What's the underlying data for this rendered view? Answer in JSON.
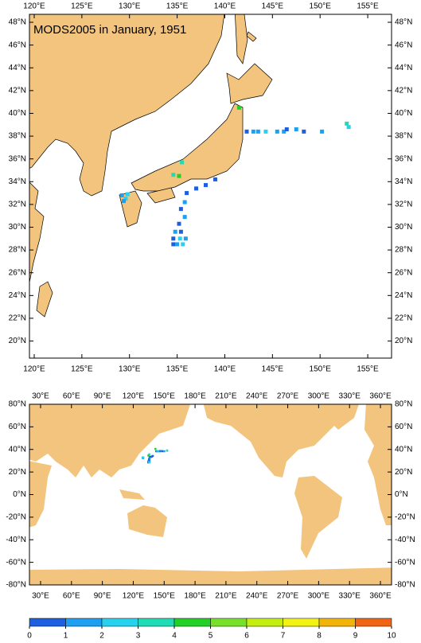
{
  "top_map": {
    "title": "MODS2005 in January, 1951",
    "xlim": [
      119.5,
      157.5
    ],
    "ylim": [
      18.5,
      48.7
    ],
    "xticks": [
      {
        "value": 120,
        "label": "120°E"
      },
      {
        "value": 125,
        "label": "125°E"
      },
      {
        "value": 130,
        "label": "130°E"
      },
      {
        "value": 135,
        "label": "135°E"
      },
      {
        "value": 140,
        "label": "140°E"
      },
      {
        "value": 145,
        "label": "145°E"
      },
      {
        "value": 150,
        "label": "150°E"
      },
      {
        "value": 155,
        "label": "155°E"
      }
    ],
    "yticks": [
      {
        "value": 20,
        "label": "20°N"
      },
      {
        "value": 22,
        "label": "22°N"
      },
      {
        "value": 24,
        "label": "24°N"
      },
      {
        "value": 26,
        "label": "26°N"
      },
      {
        "value": 28,
        "label": "28°N"
      },
      {
        "value": 30,
        "label": "30°N"
      },
      {
        "value": 32,
        "label": "32°N"
      },
      {
        "value": 34,
        "label": "34°N"
      },
      {
        "value": 36,
        "label": "36°N"
      },
      {
        "value": 38,
        "label": "38°N"
      },
      {
        "value": 40,
        "label": "40°N"
      },
      {
        "value": 42,
        "label": "42°N"
      },
      {
        "value": 44,
        "label": "44°N"
      },
      {
        "value": 46,
        "label": "46°N"
      },
      {
        "value": 48,
        "label": "48°N"
      }
    ]
  },
  "bottom_map": {
    "xlim": [
      19.2,
      370.8
    ],
    "ylim": [
      -80,
      80
    ],
    "xticks": [
      {
        "value": 30,
        "label": "30°E"
      },
      {
        "value": 60,
        "label": "60°E"
      },
      {
        "value": 90,
        "label": "90°E"
      },
      {
        "value": 120,
        "label": "120°E"
      },
      {
        "value": 150,
        "label": "150°E"
      },
      {
        "value": 180,
        "label": "180°E"
      },
      {
        "value": 210,
        "label": "210°E"
      },
      {
        "value": 240,
        "label": "240°E"
      },
      {
        "value": 270,
        "label": "270°E"
      },
      {
        "value": 300,
        "label": "300°E"
      },
      {
        "value": 330,
        "label": "330°E"
      },
      {
        "value": 360,
        "label": "360°E"
      }
    ],
    "yticks": [
      {
        "value": -80,
        "label": "-80°N"
      },
      {
        "value": -60,
        "label": "-60°N"
      },
      {
        "value": -40,
        "label": "-40°N"
      },
      {
        "value": -20,
        "label": "-20°N"
      },
      {
        "value": 0,
        "label": "0°N"
      },
      {
        "value": 20,
        "label": "20°N"
      },
      {
        "value": 40,
        "label": "40°N"
      },
      {
        "value": 60,
        "label": "60°N"
      },
      {
        "value": 80,
        "label": "80°N"
      }
    ]
  },
  "colorbar": {
    "ticks": [
      0,
      1,
      2,
      3,
      4,
      5,
      6,
      7,
      8,
      9,
      10
    ],
    "colors": [
      "#1e5fe0",
      "#1e9ff0",
      "#28d2ee",
      "#20dcb4",
      "#22d028",
      "#78e02a",
      "#c4ee10",
      "#f2f214",
      "#f2b40a",
      "#f06416"
    ]
  },
  "points": [
    {
      "lon": 142.3,
      "lat": 38.4,
      "value": 0.5
    },
    {
      "lon": 143.0,
      "lat": 38.4,
      "value": 1.5
    },
    {
      "lon": 143.5,
      "lat": 38.4,
      "value": 1.5
    },
    {
      "lon": 144.3,
      "lat": 38.4,
      "value": 2.5
    },
    {
      "lon": 145.5,
      "lat": 38.4,
      "value": 1.5
    },
    {
      "lon": 146.2,
      "lat": 38.4,
      "value": 1.5
    },
    {
      "lon": 146.5,
      "lat": 38.6,
      "value": 0.5
    },
    {
      "lon": 147.5,
      "lat": 38.6,
      "value": 1.5
    },
    {
      "lon": 148.3,
      "lat": 38.4,
      "value": 0.5
    },
    {
      "lon": 150.2,
      "lat": 38.4,
      "value": 1.5
    },
    {
      "lon": 152.8,
      "lat": 39.1,
      "value": 3.5
    },
    {
      "lon": 153.0,
      "lat": 38.8,
      "value": 2.5
    },
    {
      "lon": 141.5,
      "lat": 40.5,
      "value": 4.5
    },
    {
      "lon": 135.5,
      "lat": 35.7,
      "value": 3.5
    },
    {
      "lon": 134.6,
      "lat": 34.6,
      "value": 3.5
    },
    {
      "lon": 135.2,
      "lat": 34.5,
      "value": 4.5
    },
    {
      "lon": 129.2,
      "lat": 32.8,
      "value": 1.5
    },
    {
      "lon": 129.6,
      "lat": 32.5,
      "value": 2.5
    },
    {
      "lon": 129.4,
      "lat": 32.3,
      "value": 1.5
    },
    {
      "lon": 129.8,
      "lat": 32.9,
      "value": 2.5
    },
    {
      "lon": 138.0,
      "lat": 33.7,
      "value": 0.5
    },
    {
      "lon": 139.0,
      "lat": 34.2,
      "value": 0.5
    },
    {
      "lon": 137.0,
      "lat": 33.4,
      "value": 0.5
    },
    {
      "lon": 136.0,
      "lat": 33.0,
      "value": 0.5
    },
    {
      "lon": 135.8,
      "lat": 32.2,
      "value": 1.5
    },
    {
      "lon": 135.4,
      "lat": 31.6,
      "value": 0.5
    },
    {
      "lon": 135.8,
      "lat": 30.9,
      "value": 1.5
    },
    {
      "lon": 135.2,
      "lat": 30.3,
      "value": 0.5
    },
    {
      "lon": 134.8,
      "lat": 29.6,
      "value": 1.5
    },
    {
      "lon": 135.4,
      "lat": 29.6,
      "value": 0.5
    },
    {
      "lon": 134.6,
      "lat": 29.0,
      "value": 0.5
    },
    {
      "lon": 135.3,
      "lat": 29.0,
      "value": 2.5
    },
    {
      "lon": 135.9,
      "lat": 29.0,
      "value": 1.5
    },
    {
      "lon": 134.6,
      "lat": 28.5,
      "value": 0.5
    },
    {
      "lon": 135.0,
      "lat": 28.5,
      "value": 1.5
    },
    {
      "lon": 135.6,
      "lat": 28.5,
      "value": 2.5
    }
  ]
}
